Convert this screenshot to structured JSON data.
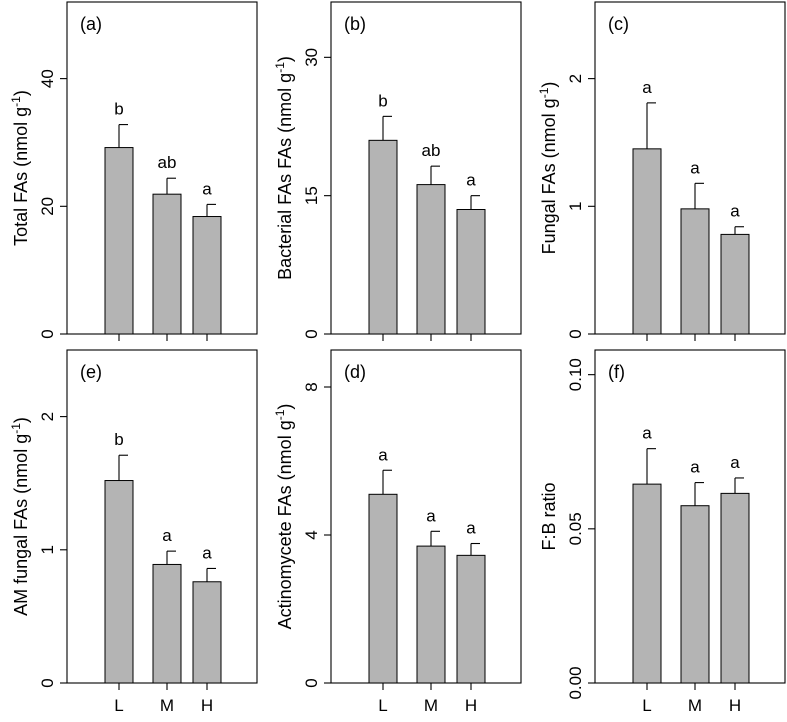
{
  "chart_data": [
    {
      "type": "bar",
      "panel": "(a)",
      "ylabel": "Total FAs (nmol g",
      "ylabel_sup": "-1",
      "ylabel_tail": ")",
      "categories": [
        "L",
        "M",
        "H"
      ],
      "values": [
        29.2,
        21.9,
        18.4
      ],
      "errors": [
        3.6,
        2.5,
        1.9
      ],
      "significance": [
        "b",
        "ab",
        "a"
      ],
      "ylim": [
        0,
        52
      ],
      "yticks": [
        0,
        20,
        40
      ],
      "ytick_labels": [
        "0",
        "20",
        "40"
      ]
    },
    {
      "type": "bar",
      "panel": "(b)",
      "ylabel": "Bacterial FAs FAs (nmol g",
      "ylabel_sup": "-1",
      "ylabel_tail": ")",
      "categories": [
        "L",
        "M",
        "H"
      ],
      "values": [
        21.0,
        16.2,
        13.5
      ],
      "errors": [
        2.6,
        2.0,
        1.5
      ],
      "significance": [
        "b",
        "ab",
        "a"
      ],
      "ylim": [
        0,
        36
      ],
      "yticks": [
        0,
        15,
        30
      ],
      "ytick_labels": [
        "0",
        "15",
        "30"
      ]
    },
    {
      "type": "bar",
      "panel": "(c)",
      "ylabel": "Fungal FAs (nmol g",
      "ylabel_sup": "-1",
      "ylabel_tail": ")",
      "categories": [
        "L",
        "M",
        "H"
      ],
      "values": [
        1.45,
        0.98,
        0.78
      ],
      "errors": [
        0.36,
        0.2,
        0.06
      ],
      "significance": [
        "a",
        "a",
        "a"
      ],
      "ylim": [
        0,
        2.6
      ],
      "yticks": [
        0,
        1,
        2
      ],
      "ytick_labels": [
        "0",
        "1",
        "2"
      ]
    },
    {
      "type": "bar",
      "panel": "(e)",
      "ylabel": "AM fungal FAs (nmol g",
      "ylabel_sup": "-1",
      "ylabel_tail": ")",
      "categories": [
        "L",
        "M",
        "H"
      ],
      "values": [
        1.52,
        0.89,
        0.76
      ],
      "errors": [
        0.19,
        0.1,
        0.1
      ],
      "significance": [
        "b",
        "a",
        "a"
      ],
      "ylim": [
        0,
        2.5
      ],
      "yticks": [
        0,
        1,
        2
      ],
      "ytick_labels": [
        "0",
        "1",
        "2"
      ]
    },
    {
      "type": "bar",
      "panel": "(d)",
      "ylabel": "Actinomycete FAs (nmol g",
      "ylabel_sup": "-1",
      "ylabel_tail": ")",
      "categories": [
        "L",
        "M",
        "H"
      ],
      "values": [
        5.1,
        3.7,
        3.45
      ],
      "errors": [
        0.65,
        0.4,
        0.32
      ],
      "significance": [
        "a",
        "a",
        "a"
      ],
      "ylim": [
        0,
        9
      ],
      "yticks": [
        0,
        4,
        8
      ],
      "ytick_labels": [
        "0",
        "4",
        "8"
      ]
    },
    {
      "type": "bar",
      "panel": "(f)",
      "ylabel": "F:B ratio",
      "ylabel_sup": "",
      "ylabel_tail": "",
      "categories": [
        "L",
        "M",
        "H"
      ],
      "values": [
        0.0645,
        0.0575,
        0.0615
      ],
      "errors": [
        0.0115,
        0.0075,
        0.005
      ],
      "significance": [
        "a",
        "a",
        "a"
      ],
      "ylim": [
        0,
        0.108
      ],
      "yticks": [
        0,
        0.05,
        0.1
      ],
      "ytick_labels": [
        "0.00",
        "0.05",
        "0.10"
      ]
    }
  ]
}
